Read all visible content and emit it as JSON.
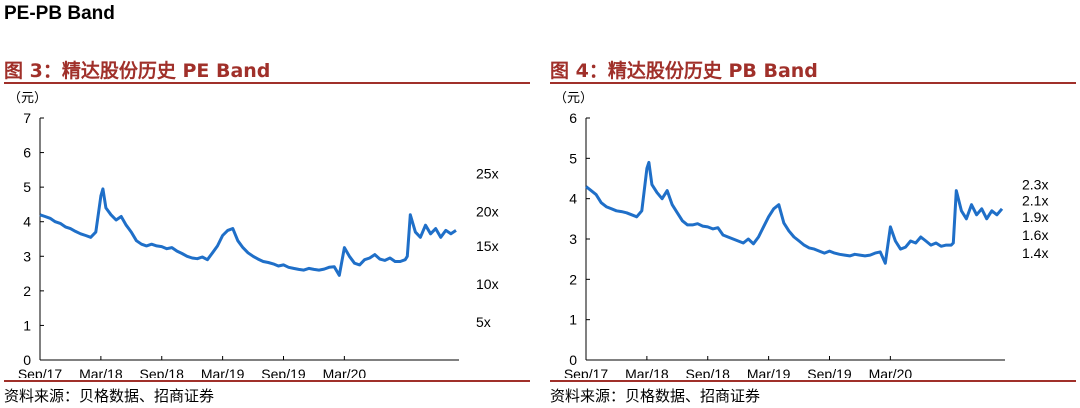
{
  "heading": "PE-PB Band",
  "panels": [
    {
      "title": "图 3：精达股份历史 PE Band",
      "source": "资料来源：贝格数据、招商证券",
      "chart_data": {
        "type": "line",
        "unit_label": "（元）",
        "ylim": [
          0,
          7
        ],
        "yticks": [
          "0",
          "1",
          "2",
          "3",
          "4",
          "5",
          "6",
          "7"
        ],
        "xticks": [
          "Sep/17",
          "Mar/18",
          "Sep/18",
          "Mar/19",
          "Sep/19",
          "Mar/20"
        ],
        "xlim": [
          0,
          41.3
        ],
        "band_labels": [
          "25x",
          "20x",
          "15x",
          "10x",
          "5x"
        ],
        "band_label_y": [
          5.4,
          4.3,
          3.3,
          2.2,
          1.1
        ],
        "series": [
          {
            "color": "#1f6fc8",
            "x": [
              0,
              0.5,
              1,
              1.5,
              2,
              2.5,
              3,
              3.5,
              4,
              4.5,
              5,
              5.5,
              6,
              6.2,
              6.5,
              7,
              7.5,
              8,
              8.5,
              9,
              9.5,
              10,
              10.5,
              11,
              11.5,
              12,
              12.5,
              13,
              13.5,
              14,
              14.5,
              15,
              15.5,
              16,
              16.5,
              17,
              17.5,
              18,
              18.5,
              19,
              19.5,
              20,
              20.5,
              21,
              21.5,
              22,
              22.5,
              23,
              23.5,
              24,
              24.5,
              25,
              25.5,
              26,
              26.5,
              27,
              27.5,
              28,
              28.5,
              29,
              29.5,
              30,
              30.5,
              31,
              31.5,
              32,
              32.5,
              33,
              33.5,
              34,
              34.5,
              35,
              35.5,
              36,
              36.2,
              36.5,
              37,
              37.5,
              38,
              38.5,
              39,
              39.5,
              40,
              40.5,
              41
            ],
            "y": [
              4.2,
              4.15,
              4.1,
              4.0,
              3.95,
              3.85,
              3.8,
              3.72,
              3.65,
              3.6,
              3.55,
              3.7,
              4.75,
              4.95,
              4.4,
              4.2,
              4.05,
              4.15,
              3.9,
              3.7,
              3.45,
              3.35,
              3.3,
              3.35,
              3.3,
              3.28,
              3.22,
              3.25,
              3.15,
              3.08,
              3.0,
              2.95,
              2.93,
              2.98,
              2.9,
              3.1,
              3.3,
              3.6,
              3.75,
              3.8,
              3.45,
              3.25,
              3.1,
              3.0,
              2.92,
              2.85,
              2.82,
              2.78,
              2.72,
              2.75,
              2.68,
              2.65,
              2.62,
              2.6,
              2.65,
              2.62,
              2.6,
              2.63,
              2.68,
              2.7,
              2.45,
              3.25,
              3.0,
              2.8,
              2.75,
              2.9,
              2.95,
              3.05,
              2.92,
              2.88,
              2.95,
              2.85,
              2.85,
              2.9,
              3.0,
              4.2,
              3.7,
              3.55,
              3.9,
              3.65,
              3.8,
              3.55,
              3.75,
              3.65,
              3.75
            ]
          }
        ]
      }
    },
    {
      "title": "图 4：精达股份历史 PB Band",
      "source": "资料来源：贝格数据、招商证券",
      "chart_data": {
        "type": "line",
        "unit_label": "（元）",
        "ylim": [
          0,
          6
        ],
        "yticks": [
          "0",
          "1",
          "2",
          "3",
          "4",
          "5",
          "6"
        ],
        "xticks": [
          "Sep/17",
          "Mar/18",
          "Sep/18",
          "Mar/19",
          "Sep/19",
          "Mar/20"
        ],
        "xlim": [
          0,
          41.3
        ],
        "band_labels": [
          "2.3x",
          "2.1x",
          "1.9x",
          "1.6x",
          "1.4x"
        ],
        "band_label_y": [
          4.35,
          3.95,
          3.55,
          3.1,
          2.65
        ],
        "series": [
          {
            "color": "#1f6fc8",
            "x": [
              0,
              0.5,
              1,
              1.5,
              2,
              2.5,
              3,
              3.5,
              4,
              4.5,
              5,
              5.5,
              6,
              6.2,
              6.5,
              7,
              7.5,
              8,
              8.5,
              9,
              9.5,
              10,
              10.5,
              11,
              11.5,
              12,
              12.5,
              13,
              13.5,
              14,
              14.5,
              15,
              15.5,
              16,
              16.5,
              17,
              17.5,
              18,
              18.5,
              19,
              19.5,
              20,
              20.5,
              21,
              21.5,
              22,
              22.5,
              23,
              23.5,
              24,
              24.5,
              25,
              25.5,
              26,
              26.5,
              27,
              27.5,
              28,
              28.5,
              29,
              29.5,
              30,
              30.5,
              31,
              31.5,
              32,
              32.5,
              33,
              33.5,
              34,
              34.5,
              35,
              35.5,
              36,
              36.2,
              36.5,
              37,
              37.5,
              38,
              38.5,
              39,
              39.5,
              40,
              40.5,
              41
            ],
            "y": [
              4.3,
              4.2,
              4.1,
              3.9,
              3.8,
              3.75,
              3.7,
              3.68,
              3.65,
              3.6,
              3.55,
              3.7,
              4.75,
              4.9,
              4.35,
              4.15,
              4.0,
              4.2,
              3.85,
              3.65,
              3.45,
              3.35,
              3.35,
              3.38,
              3.32,
              3.3,
              3.25,
              3.28,
              3.1,
              3.05,
              3.0,
              2.95,
              2.9,
              3.0,
              2.88,
              3.05,
              3.3,
              3.55,
              3.75,
              3.85,
              3.4,
              3.2,
              3.05,
              2.95,
              2.85,
              2.78,
              2.75,
              2.7,
              2.65,
              2.7,
              2.65,
              2.62,
              2.6,
              2.58,
              2.62,
              2.6,
              2.58,
              2.6,
              2.65,
              2.68,
              2.4,
              3.3,
              2.95,
              2.75,
              2.8,
              2.95,
              2.9,
              3.05,
              2.95,
              2.85,
              2.9,
              2.82,
              2.85,
              2.85,
              2.9,
              4.2,
              3.7,
              3.5,
              3.85,
              3.6,
              3.75,
              3.5,
              3.7,
              3.6,
              3.75
            ]
          }
        ]
      }
    }
  ]
}
